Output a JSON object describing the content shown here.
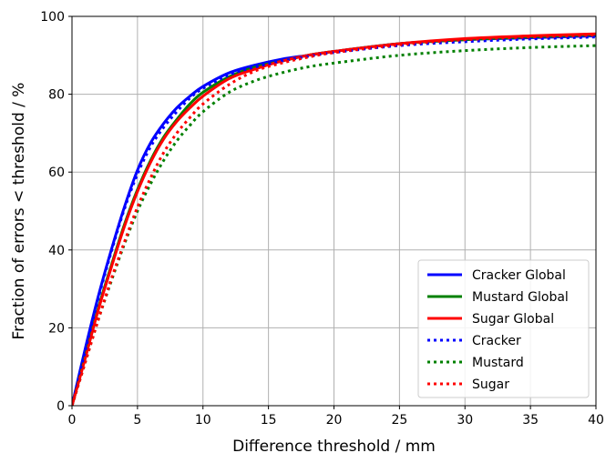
{
  "chart_data": {
    "type": "line",
    "xlabel": "Difference threshold / mm",
    "ylabel": "Fraction of errors < threshold / %",
    "xlim": [
      0,
      40
    ],
    "ylim": [
      0,
      100
    ],
    "xticks": [
      "0",
      "5",
      "10",
      "15",
      "20",
      "25",
      "30",
      "35",
      "40"
    ],
    "yticks": [
      "0",
      "20",
      "40",
      "60",
      "80",
      "100"
    ],
    "grid": true,
    "legend_position": "lower-right",
    "x": [
      0,
      1,
      2,
      3,
      4,
      5,
      6,
      7,
      8,
      9,
      10,
      12,
      14,
      16,
      18,
      20,
      25,
      30,
      35,
      40
    ],
    "series": [
      {
        "name": "Cracker Global",
        "color": "#0000ff",
        "style": "solid",
        "values": [
          0,
          14.5,
          28,
          40,
          51,
          60.5,
          67.5,
          72.5,
          76.5,
          79.5,
          82,
          85.5,
          87.5,
          89,
          90,
          91,
          93,
          94,
          94.5,
          95
        ]
      },
      {
        "name": "Mustard Global",
        "color": "#008000",
        "style": "solid",
        "values": [
          0,
          12.5,
          25,
          36,
          46.5,
          55.5,
          63,
          69,
          73.5,
          77.5,
          80.5,
          84.5,
          87,
          88.5,
          90,
          91,
          93,
          94,
          94.7,
          95.3
        ]
      },
      {
        "name": "Sugar Global",
        "color": "#ff0000",
        "style": "solid",
        "values": [
          0,
          12,
          24.5,
          35.5,
          46,
          55,
          62.5,
          68.5,
          73,
          76.5,
          79.5,
          84,
          86.5,
          88.5,
          90,
          91,
          93,
          94.3,
          95,
          95.5
        ]
      },
      {
        "name": "Cracker",
        "color": "#0000ff",
        "style": "dotted",
        "values": [
          0,
          14,
          27.5,
          39.5,
          50.5,
          59.5,
          66.5,
          71.5,
          75.5,
          79,
          81.5,
          85,
          87,
          88.5,
          89.7,
          90.7,
          92.5,
          93.5,
          94.2,
          94.7
        ]
      },
      {
        "name": "Mustard",
        "color": "#008000",
        "style": "dotted",
        "values": [
          0,
          11,
          22,
          32,
          41.5,
          50,
          57,
          63,
          68,
          72,
          75.5,
          80.5,
          83.5,
          85.5,
          87,
          88,
          90,
          91.2,
          92,
          92.5
        ]
      },
      {
        "name": "Sugar",
        "color": "#ff0000",
        "style": "dotted",
        "values": [
          0,
          11,
          22,
          32.5,
          42,
          51,
          58.5,
          65,
          70,
          74,
          77.5,
          82.5,
          86,
          88,
          89.5,
          90.7,
          92.7,
          94,
          94.7,
          95.2
        ]
      }
    ]
  }
}
